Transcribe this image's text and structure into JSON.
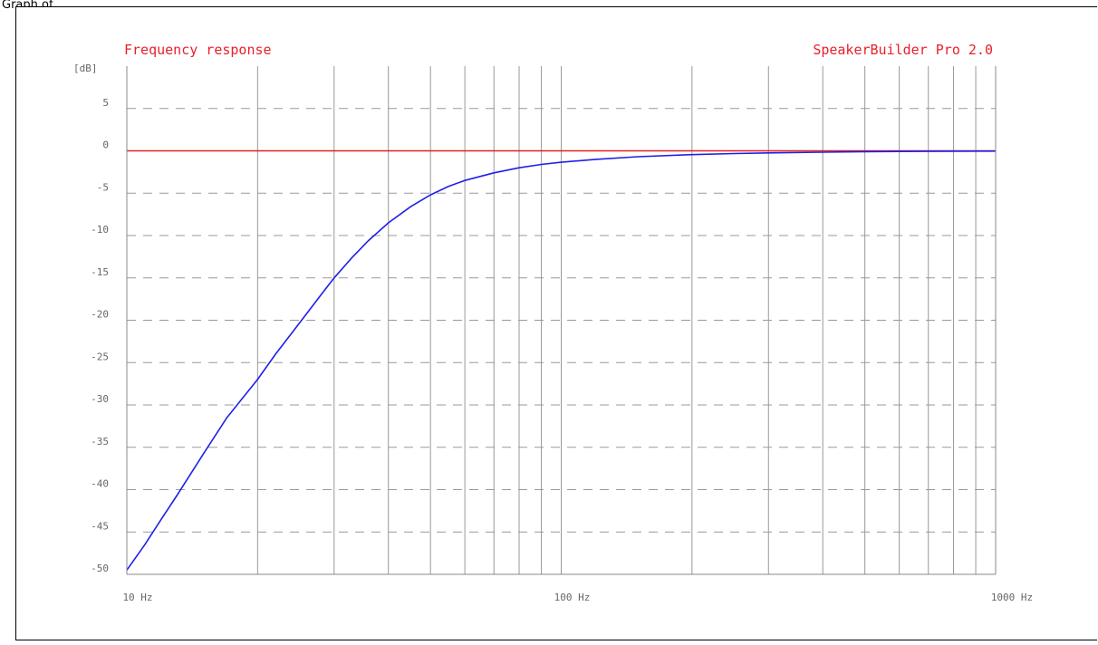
{
  "window": {
    "label": "Graph of..."
  },
  "chart_data": {
    "type": "line",
    "title": "Frequency response",
    "brand": "SpeakerBuilder Pro 2.0",
    "y_unit_label": "[dB]",
    "x_scale": "log",
    "xlim": [
      10,
      1000
    ],
    "ylim": [
      -50,
      10
    ],
    "y_ticks": [
      5,
      0,
      -5,
      -10,
      -15,
      -20,
      -25,
      -30,
      -35,
      -40,
      -45,
      -50
    ],
    "y_tick_labels": [
      "5",
      "0",
      "-5",
      "-10",
      "-15",
      "-20",
      "-25",
      "-30",
      "-35",
      "-40",
      "-45",
      "-50"
    ],
    "x_ticks": [
      10,
      100,
      1000
    ],
    "x_tick_labels": [
      "10 Hz",
      "100 Hz",
      "1000 Hz"
    ],
    "x_minor_gridlines": [
      20,
      30,
      40,
      50,
      60,
      70,
      80,
      90,
      200,
      300,
      400,
      500,
      600,
      700,
      800,
      900
    ],
    "grid": true,
    "colors": {
      "title": "#e8202a",
      "reference_line": "#e02020",
      "response_curve": "#1f1fe8",
      "grid": "#999999",
      "tick_label": "#666666"
    },
    "series": [
      {
        "x": [
          10,
          20,
          30,
          40,
          50,
          60,
          70,
          80,
          90,
          100,
          200,
          300,
          400,
          500,
          1000
        ],
        "y": [
          0,
          0,
          0,
          0,
          0,
          0,
          0,
          0,
          0,
          0,
          0,
          0,
          0,
          0,
          0
        ]
      },
      {
        "x": [
          10,
          11,
          12,
          13,
          14,
          15,
          17,
          20,
          22,
          25,
          28,
          30,
          33,
          36,
          40,
          45,
          50,
          55,
          60,
          70,
          80,
          90,
          100,
          120,
          150,
          200,
          250,
          300,
          400,
          500,
          600,
          800,
          1000
        ],
        "y": [
          -49.5,
          -46.5,
          -43.5,
          -40.8,
          -38.2,
          -35.8,
          -31.5,
          -27.0,
          -24.0,
          -20.3,
          -17.0,
          -15.0,
          -12.6,
          -10.6,
          -8.5,
          -6.6,
          -5.2,
          -4.2,
          -3.5,
          -2.6,
          -2.0,
          -1.6,
          -1.35,
          -1.0,
          -0.7,
          -0.45,
          -0.32,
          -0.25,
          -0.16,
          -0.1,
          -0.07,
          -0.04,
          -0.03
        ]
      }
    ]
  }
}
